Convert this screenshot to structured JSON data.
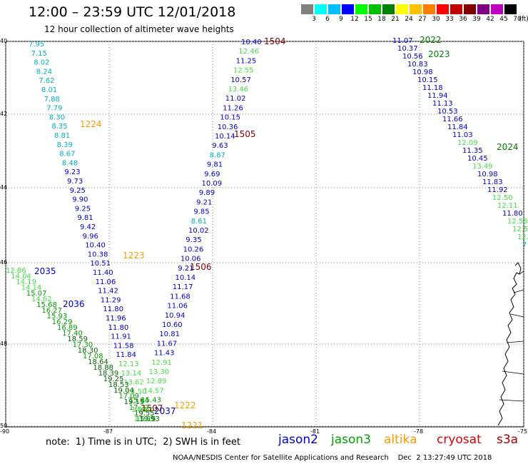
{
  "header": {
    "title": "12:00 – 23:59 UTC 12/01/2018",
    "subtitle": "12 hour collection of altimeter wave heights"
  },
  "colorbar": {
    "unit": "(ft)",
    "labels": [
      "3",
      "6",
      "9",
      "12",
      "15",
      "18",
      "21",
      "24",
      "27",
      "30",
      "33",
      "36",
      "39",
      "42",
      "45",
      "70"
    ],
    "colors": [
      "#808080",
      "#00ffff",
      "#00c0ff",
      "#0000ff",
      "#00ff00",
      "#00c000",
      "#008000",
      "#ffff00",
      "#ffc000",
      "#ff8000",
      "#ff0000",
      "#c00000",
      "#800000",
      "#800080",
      "#c000c0",
      "#000000"
    ]
  },
  "axes": {
    "lat_labels": [
      "40",
      "42",
      "44",
      "46",
      "48",
      "50"
    ],
    "lon_labels": [
      "-90",
      "-87",
      "-84",
      "-81",
      "-78",
      "-75"
    ]
  },
  "map": {
    "track_a": {
      "color": "#00b0c0",
      "values": [
        "7.95",
        "7.15",
        "8.02",
        "8.24",
        "7.62",
        "8.01",
        "7.88",
        "7.79",
        "8.30",
        "8.35",
        "8.81",
        "8.39",
        "8.67",
        "8.48",
        "9.23",
        "9.73",
        "9.25",
        "9.90",
        "9.25",
        "9.81",
        "9.42",
        "9.96",
        "10.40",
        "10.38",
        "10.51",
        "11.40",
        "11.06",
        "11.42",
        "11.29",
        "11.80",
        "11.96",
        "11.80",
        "11.91",
        "11.58",
        "11.84",
        "12.13",
        "13.14",
        "13.62",
        "14.50",
        "15.84",
        "14.36",
        "13.55"
      ],
      "time_labels": [
        "1224",
        "1223",
        "1222",
        "1221"
      ]
    },
    "track_b": {
      "values": [
        "10.40",
        "12.46",
        "11.25",
        "12.55",
        "10.57",
        "13.46",
        "11.02",
        "11.26",
        "10.15",
        "10.36",
        "10.14",
        "9.63",
        "8.87",
        "9.81",
        "9.69",
        "10.09",
        "9.89",
        "9.21",
        "9.85",
        "8.61",
        "10.02",
        "9.35",
        "10.26",
        "10.06",
        "9.21",
        "10.14",
        "11.17",
        "11.68",
        "11.06",
        "10.94",
        "10.60",
        "10.81",
        "11.67",
        "11.43",
        "12.91",
        "13.30",
        "12.89",
        "14.57",
        "15.43",
        "14.07",
        "15.15"
      ],
      "time_labels": [
        "1504",
        "1505",
        "1506",
        "1507"
      ]
    },
    "track_c": {
      "values": [
        "11.07",
        "10.37",
        "10.56",
        "10.83",
        "10.98",
        "10.15",
        "11.18",
        "11.94",
        "11.13",
        "10.53",
        "11.66",
        "11.84",
        "11.03",
        "12.09",
        "11.35",
        "10.45",
        "13.49",
        "10.98",
        "11.83",
        "11.92",
        "12.50",
        "12.11",
        "11.80",
        "12.58",
        "12.5",
        "12.",
        "7"
      ],
      "time_labels": [
        "2022",
        "2023",
        "2024"
      ]
    },
    "track_d": {
      "values": [
        "12.86",
        "14.04",
        "14.19",
        "14.14",
        "15.07",
        "14.62",
        "15.68",
        "16.27",
        "15.93",
        "16.29",
        "16.89",
        "17.40",
        "18.59",
        "17.30",
        "18.30",
        "17.08",
        "18.64",
        "18.88",
        "18.39",
        "19.25",
        "18.53",
        "19.04",
        "17.09",
        "19.15",
        "17.27",
        "19.55",
        "19.93"
      ],
      "time_labels": [
        "2035",
        "2036",
        "2037"
      ]
    }
  },
  "footer": {
    "note": "note:  1) Time is in UTC;  2) SWH is in feet",
    "legend": [
      {
        "name": "jason2",
        "color": "#0000cc"
      },
      {
        "name": "jason3",
        "color": "#00a000"
      },
      {
        "name": "altika",
        "color": "#ff9900"
      },
      {
        "name": "cryosat",
        "color": "#dd0000"
      },
      {
        "name": "s3a",
        "color": "#aa0000"
      }
    ],
    "credit": "NOAA/NESDIS Center for Satellite Applications and Research    Dec  2 13:27:49 UTC 2018"
  }
}
